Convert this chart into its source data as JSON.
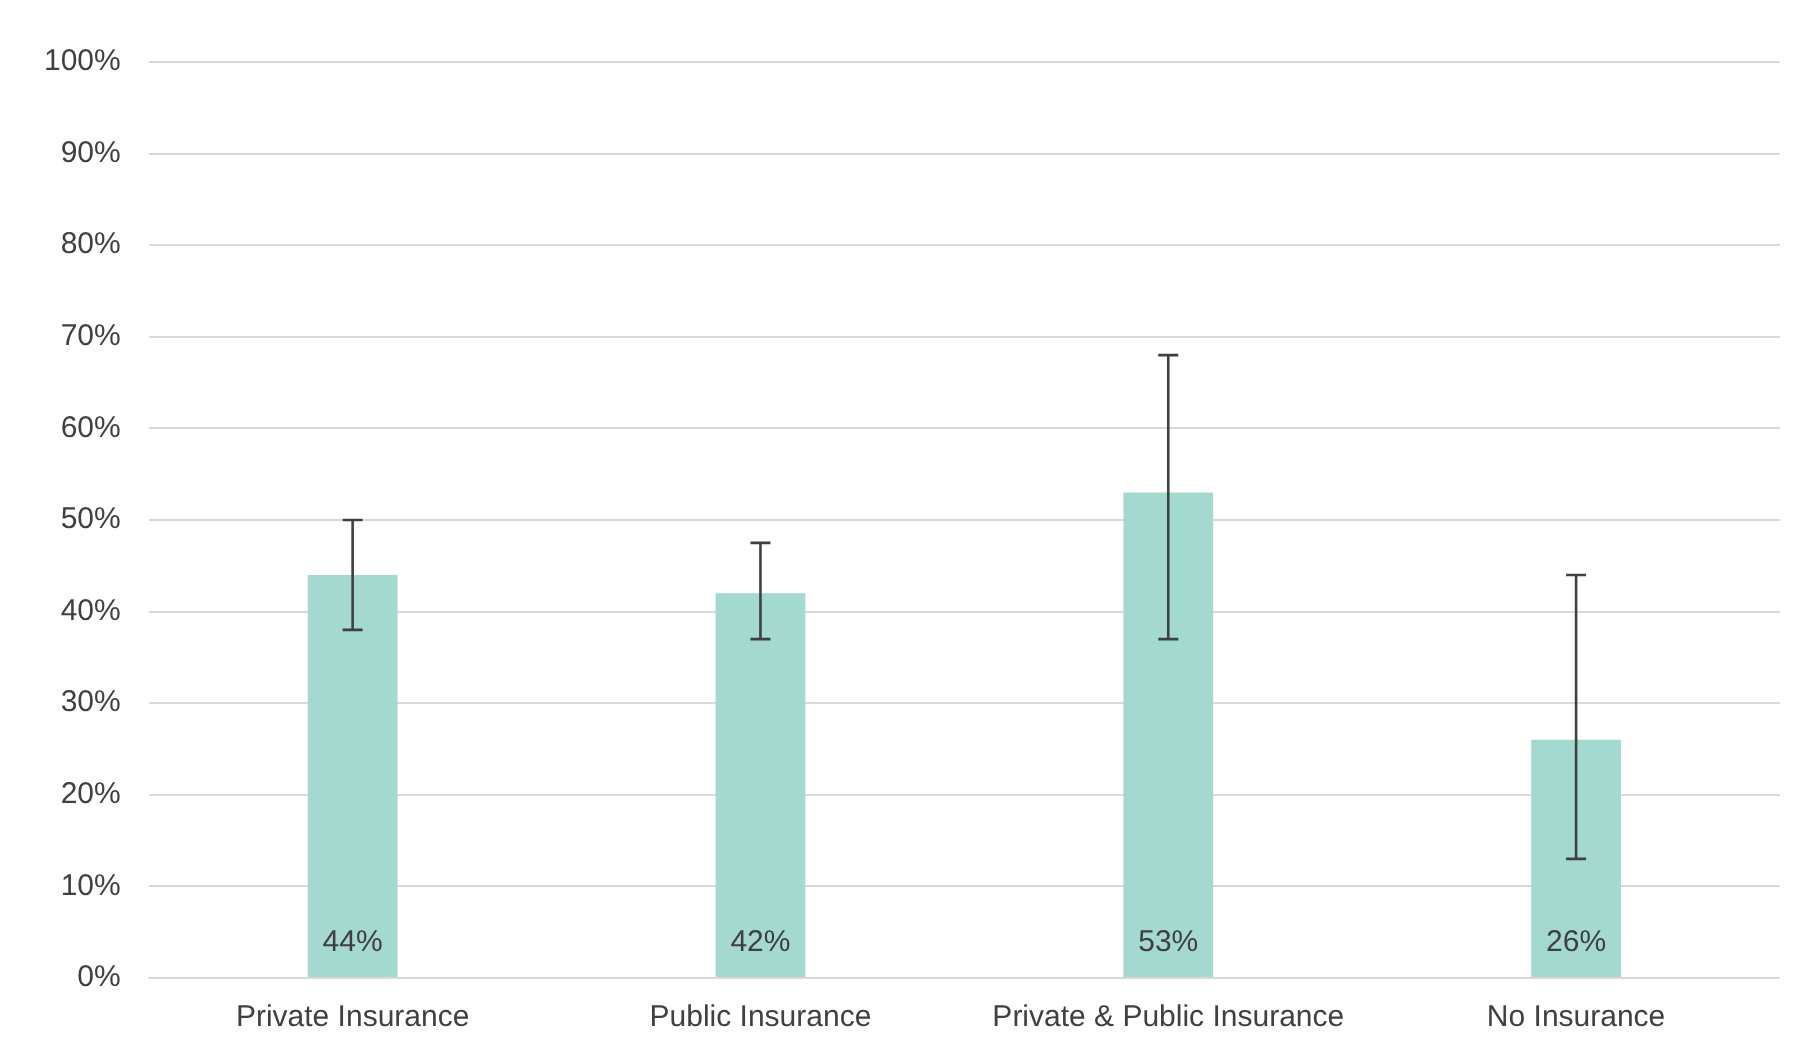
{
  "chart_data": {
    "type": "bar",
    "categories": [
      "Private Insurance",
      "Public Insurance",
      "Private & Public Insurance",
      "No Insurance"
    ],
    "values": [
      44,
      42,
      53,
      26
    ],
    "color": "#a3d9cf",
    "errors": [
      [
        38,
        50
      ],
      [
        37,
        47.5
      ],
      [
        37,
        68
      ],
      [
        13,
        44
      ]
    ],
    "value_labels": [
      "44%",
      "42%",
      "53%",
      "26%"
    ],
    "ylim": [
      0,
      100
    ],
    "yticks": [
      {
        "value": 0,
        "label": "0%"
      },
      {
        "value": 10,
        "label": "10%"
      },
      {
        "value": 20,
        "label": "20%"
      },
      {
        "value": 30,
        "label": "30%"
      },
      {
        "value": 40,
        "label": "40%"
      },
      {
        "value": 50,
        "label": "50%"
      },
      {
        "value": 60,
        "label": "60%"
      },
      {
        "value": 70,
        "label": "70%"
      },
      {
        "value": 80,
        "label": "80%"
      },
      {
        "value": 90,
        "label": "90%"
      },
      {
        "value": 100,
        "label": "100%"
      }
    ],
    "grid": "y",
    "legend": false
  }
}
